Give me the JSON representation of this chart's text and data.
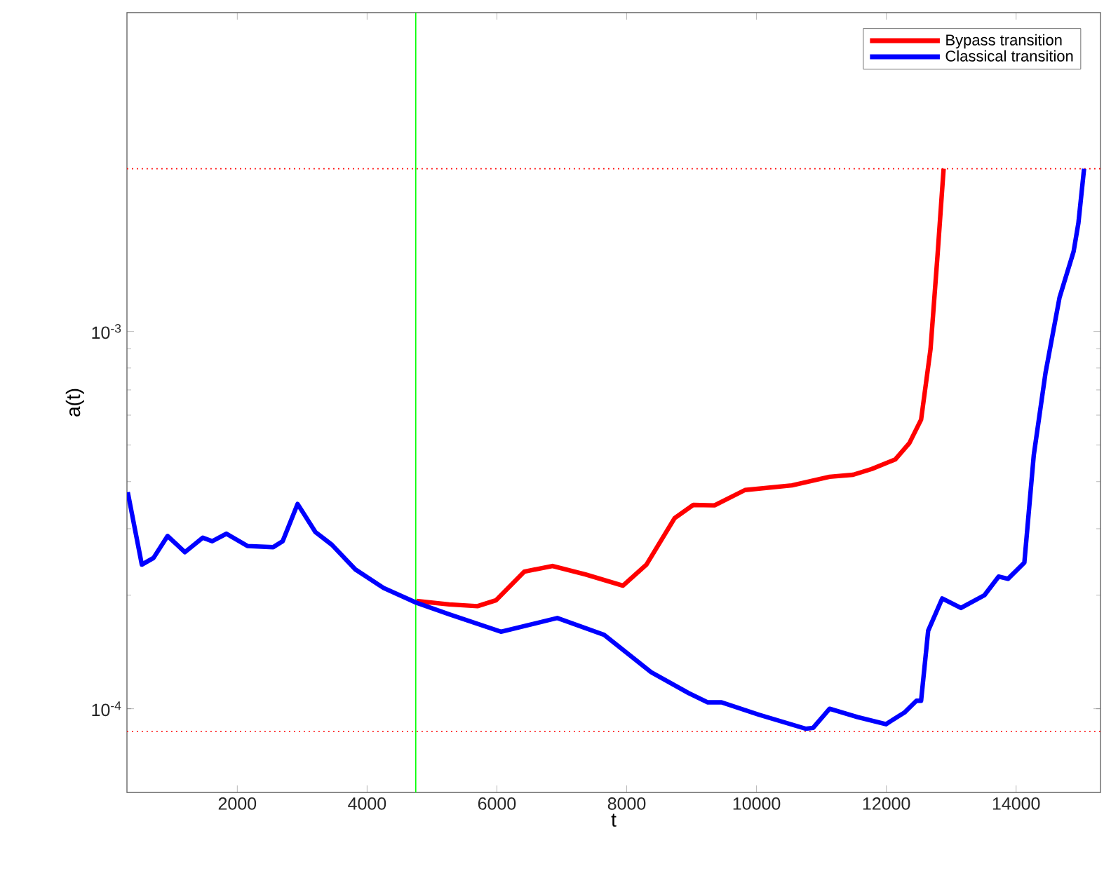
{
  "chart_data": {
    "type": "line",
    "xlabel": "t",
    "ylabel": "a(t)",
    "xlim": [
      300,
      15300
    ],
    "ylim": [
      6e-05,
      0.007
    ],
    "log": "y",
    "xticks": [
      2000,
      4000,
      6000,
      8000,
      10000,
      12000,
      14000
    ],
    "yticks": [
      {
        "value": 0.0001,
        "label": "10$^{-4}$"
      },
      {
        "value": 0.001,
        "label": "10$^{-3}$"
      }
    ],
    "grid": false,
    "legend": "top right",
    "line_style": "solid",
    "marker": "none",
    "series": [
      {
        "name": "Bypass transition",
        "color": "#ff0000",
        "x": [
          4760,
          5266,
          5700,
          5989,
          6423,
          6857,
          7365,
          7942,
          8304,
          8738,
          9027,
          9353,
          9823,
          10546,
          11126,
          11488,
          11776,
          12138,
          12355,
          12536,
          12681,
          12789,
          12883
        ],
        "values": [
          0.000193,
          0.000189,
          0.000187,
          0.000194,
          0.000231,
          0.000239,
          0.000227,
          0.000212,
          0.000241,
          0.00032,
          0.000347,
          0.000346,
          0.00038,
          0.000391,
          0.000412,
          0.000417,
          0.000432,
          0.000458,
          0.000506,
          0.000584,
          0.000897,
          0.00159,
          0.0027
        ]
      },
      {
        "name": "Classical transition",
        "color": "#0000ff",
        "x": [
          312,
          529,
          709,
          926,
          1193,
          1468,
          1614,
          1831,
          2156,
          2553,
          2699,
          2929,
          3204,
          3458,
          3819,
          4253,
          4760,
          5266,
          6062,
          6930,
          7652,
          8376,
          8955,
          9244,
          9461,
          10040,
          10763,
          10872,
          11126,
          11560,
          11994,
          12282,
          12464,
          12536,
          12645,
          12861,
          13150,
          13512,
          13730,
          13875,
          14127,
          14272,
          14453,
          14669,
          14886,
          14960,
          15047
        ],
        "values": [
          0.000375,
          0.000241,
          0.000251,
          0.000287,
          0.00026,
          0.000284,
          0.000278,
          0.000291,
          0.00027,
          0.000268,
          0.000278,
          0.000349,
          0.000294,
          0.000272,
          0.000234,
          0.000209,
          0.000191,
          0.000178,
          0.00016,
          0.000174,
          0.000157,
          0.000125,
          0.00011,
          0.000104,
          0.000104,
          9.64e-05,
          8.85e-05,
          8.9e-05,
          0.0001,
          9.5e-05,
          9.1e-05,
          9.78e-05,
          0.000105,
          0.000105,
          0.000161,
          0.000196,
          0.000185,
          0.0002,
          0.000224,
          0.000221,
          0.000244,
          0.00047,
          0.000777,
          0.00123,
          0.00163,
          0.00194,
          0.0027
        ]
      }
    ],
    "ref_lines": [
      {
        "axis": "y",
        "value": 0.0027,
        "color": "#ff0000",
        "line_style": "dotted"
      },
      {
        "axis": "y",
        "value": 8.7e-05,
        "color": "#ff0000",
        "line_style": "dotted"
      },
      {
        "axis": "x",
        "value": 4750,
        "color": "#00ff00",
        "line_style": "solid"
      }
    ]
  }
}
